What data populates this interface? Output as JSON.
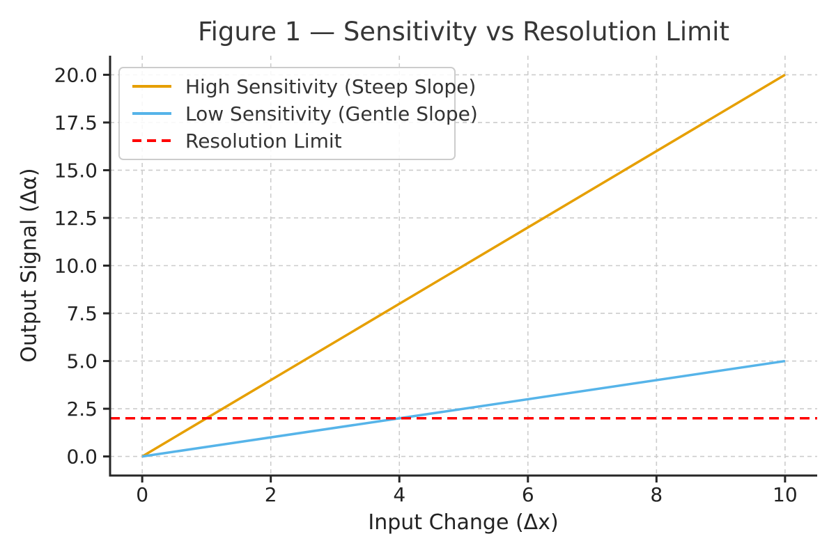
{
  "chart_data": {
    "type": "line",
    "title": "Figure 1 — Sensitivity vs Resolution Limit",
    "xlabel": "Input Change (Δx)",
    "ylabel": "Output Signal (Δα)",
    "xlim": [
      -0.5,
      10.5
    ],
    "ylim": [
      -1.0,
      21.0
    ],
    "xticks": [
      0,
      2,
      4,
      6,
      8,
      10
    ],
    "xtick_labels": [
      "0",
      "2",
      "4",
      "6",
      "8",
      "10"
    ],
    "yticks": [
      0,
      2.5,
      5,
      7.5,
      10,
      12.5,
      15,
      17.5,
      20
    ],
    "ytick_labels": [
      "0.0",
      "2.5",
      "5.0",
      "7.5",
      "10.0",
      "12.5",
      "15.0",
      "17.5",
      "20.0"
    ],
    "grid": {
      "visible": true,
      "line_style": "dashed",
      "color": "#cccccc"
    },
    "legend": {
      "position": "upper left"
    },
    "series": [
      {
        "name": "High Sensitivity (Steep Slope)",
        "color": "#E69F00",
        "line_style": "solid",
        "x": [
          0,
          10
        ],
        "y": [
          0,
          20
        ]
      },
      {
        "name": "Low Sensitivity (Gentle Slope)",
        "color": "#56B4E9",
        "line_style": "solid",
        "x": [
          0,
          10
        ],
        "y": [
          0,
          5
        ]
      },
      {
        "name": "Resolution Limit",
        "color": "#FF0000",
        "line_style": "dashed",
        "x": [
          -0.5,
          10.5
        ],
        "y": [
          2,
          2
        ]
      }
    ],
    "colors": {
      "spine": "#262626",
      "tick_text": "#222222",
      "title_text": "#363636",
      "background": "#ffffff"
    }
  }
}
